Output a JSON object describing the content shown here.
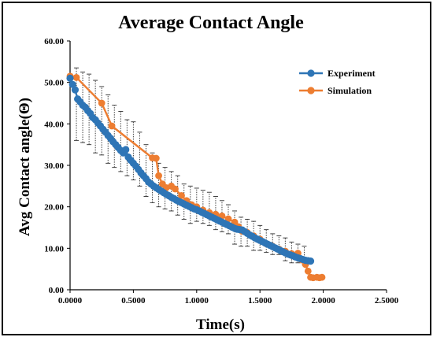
{
  "chart_data": {
    "type": "line",
    "title": "Average Contact Angle",
    "xlabel": "Time(s)",
    "ylabel": "Avg Contact angle(Θ)",
    "xlim": [
      0,
      2.5
    ],
    "ylim": [
      0,
      60
    ],
    "x_ticks": [
      0,
      0.5,
      1.0,
      1.5,
      2.0,
      2.5
    ],
    "x_tick_labels": [
      "0.0000",
      "0.5000",
      "1.0000",
      "1.5000",
      "2.0000",
      "2.5000"
    ],
    "y_ticks": [
      0,
      10,
      20,
      30,
      40,
      50,
      60
    ],
    "y_tick_labels": [
      "0.00",
      "10.00",
      "20.00",
      "30.00",
      "40.00",
      "50.00",
      "60.00"
    ],
    "grid": false,
    "legend_position": "top-right",
    "colors": {
      "experiment": "#2E75B6",
      "simulation": "#ED7D31",
      "error_bar": "#404040"
    },
    "series": [
      {
        "name": "Experiment",
        "marker": "circle",
        "x": [
          0.0,
          0.02,
          0.04,
          0.06,
          0.08,
          0.1,
          0.12,
          0.14,
          0.16,
          0.18,
          0.2,
          0.22,
          0.24,
          0.26,
          0.28,
          0.3,
          0.32,
          0.34,
          0.36,
          0.38,
          0.4,
          0.42,
          0.44,
          0.46,
          0.48,
          0.5,
          0.52,
          0.54,
          0.56,
          0.58,
          0.6,
          0.62,
          0.64,
          0.66,
          0.68,
          0.7,
          0.72,
          0.74,
          0.76,
          0.78,
          0.8,
          0.82,
          0.84,
          0.86,
          0.88,
          0.9,
          0.92,
          0.94,
          0.96,
          0.98,
          1.0,
          1.02,
          1.04,
          1.06,
          1.08,
          1.1,
          1.12,
          1.14,
          1.16,
          1.18,
          1.2,
          1.22,
          1.24,
          1.26,
          1.28,
          1.3,
          1.32,
          1.34,
          1.36,
          1.38,
          1.4,
          1.42,
          1.44,
          1.46,
          1.48,
          1.5,
          1.52,
          1.54,
          1.56,
          1.58,
          1.6,
          1.62,
          1.64,
          1.66,
          1.68,
          1.7,
          1.72,
          1.74,
          1.76,
          1.78,
          1.8,
          1.82,
          1.84,
          1.86,
          1.88,
          1.9
        ],
        "y": [
          51.0,
          49.5,
          48.2,
          46.0,
          45.3,
          44.5,
          44.0,
          43.2,
          42.5,
          41.5,
          41.0,
          40.2,
          39.5,
          38.7,
          38.0,
          37.2,
          36.5,
          35.7,
          35.0,
          34.3,
          33.6,
          33.0,
          33.8,
          32.0,
          31.2,
          30.5,
          29.8,
          29.0,
          28.2,
          27.5,
          26.8,
          26.0,
          25.5,
          25.0,
          24.6,
          24.2,
          23.8,
          23.4,
          23.0,
          22.7,
          22.3,
          22.0,
          21.6,
          21.3,
          21.0,
          20.7,
          20.4,
          20.1,
          19.8,
          19.5,
          19.3,
          19.0,
          18.7,
          18.4,
          18.1,
          17.8,
          17.5,
          17.2,
          16.9,
          16.6,
          16.3,
          16.0,
          15.7,
          15.4,
          15.1,
          14.8,
          14.6,
          14.5,
          14.4,
          14.0,
          13.6,
          13.2,
          12.9,
          12.5,
          12.2,
          11.9,
          11.6,
          11.3,
          11.0,
          10.7,
          10.4,
          10.1,
          9.8,
          9.5,
          9.2,
          8.9,
          8.6,
          8.4,
          8.2,
          7.9,
          7.7,
          7.5,
          7.3,
          7.1,
          7.0,
          6.9
        ]
      },
      {
        "name": "Simulation",
        "marker": "circle",
        "x": [
          0.0,
          0.05,
          0.25,
          0.33,
          0.65,
          0.68,
          0.7,
          0.73,
          0.76,
          0.8,
          0.83,
          0.88,
          0.92,
          0.96,
          1.0,
          1.05,
          1.1,
          1.15,
          1.2,
          1.25,
          1.3,
          1.33,
          1.36,
          1.4,
          1.45,
          1.5,
          1.55,
          1.6,
          1.65,
          1.7,
          1.75,
          1.78,
          1.8,
          1.83,
          1.86,
          1.88,
          1.9,
          1.92,
          1.95,
          1.97,
          1.99
        ],
        "y": [
          51.5,
          51.2,
          45.0,
          39.5,
          31.8,
          31.7,
          27.5,
          25.5,
          24.6,
          25.0,
          24.3,
          22.7,
          21.5,
          20.5,
          20.0,
          19.2,
          18.6,
          18.2,
          17.8,
          17.1,
          16.3,
          15.2,
          14.1,
          13.8,
          13.0,
          12.2,
          11.1,
          10.5,
          9.8,
          9.3,
          8.7,
          8.2,
          8.8,
          7.2,
          6.1,
          4.5,
          3.0,
          2.9,
          3.0,
          2.9,
          3.0
        ]
      }
    ],
    "error_bars": {
      "x": [
        0.05,
        0.1,
        0.15,
        0.2,
        0.25,
        0.3,
        0.35,
        0.4,
        0.45,
        0.5,
        0.55,
        0.6,
        0.65,
        0.7,
        0.75,
        0.8,
        0.85,
        0.9,
        0.95,
        1.0,
        1.05,
        1.1,
        1.15,
        1.2,
        1.25,
        1.3,
        1.35,
        1.4,
        1.45,
        1.5,
        1.55,
        1.6,
        1.65,
        1.7,
        1.75,
        1.8,
        1.85
      ],
      "low": [
        36.0,
        35.5,
        35.0,
        33.0,
        32.5,
        30.5,
        29.5,
        28.5,
        27.5,
        26.5,
        25.0,
        22.5,
        21.0,
        20.0,
        19.5,
        19.0,
        18.0,
        17.0,
        16.0,
        16.5,
        16.0,
        15.5,
        14.5,
        14.0,
        13.5,
        11.0,
        10.5,
        10.5,
        9.5,
        9.5,
        9.0,
        8.5,
        8.5,
        7.0,
        6.5,
        6.5,
        6.0
      ],
      "high": [
        53.5,
        52.5,
        52.0,
        50.5,
        49.0,
        47.0,
        44.5,
        43.0,
        41.0,
        40.5,
        38.0,
        35.0,
        33.0,
        30.5,
        29.5,
        28.5,
        27.5,
        25.5,
        25.0,
        24.5,
        24.0,
        23.5,
        22.5,
        21.5,
        20.5,
        19.0,
        17.5,
        17.0,
        16.5,
        15.5,
        14.5,
        13.5,
        13.0,
        12.5,
        11.5,
        11.0,
        10.5
      ]
    }
  }
}
